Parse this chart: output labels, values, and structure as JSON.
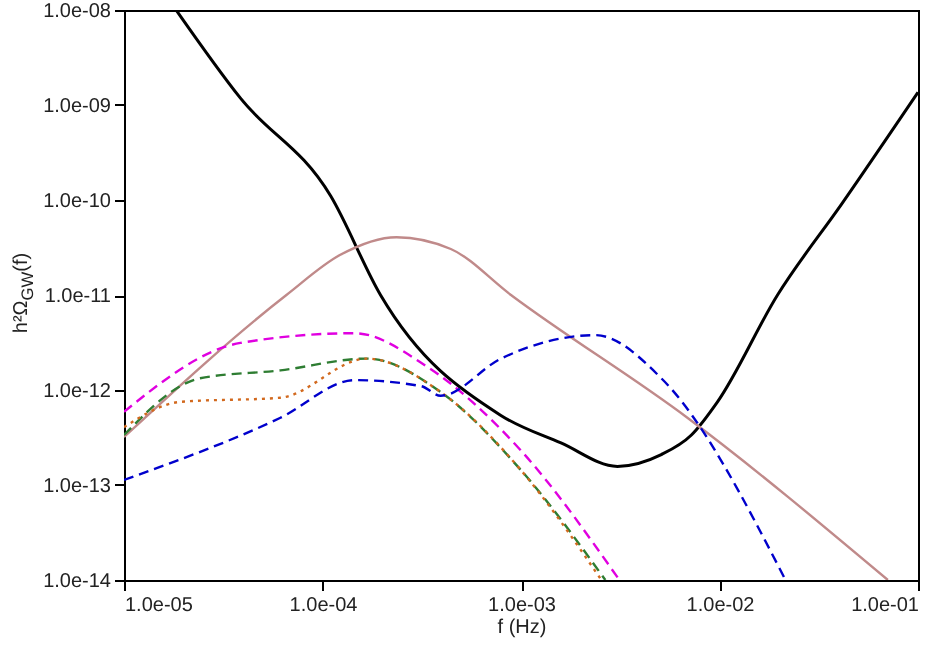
{
  "chart_data": {
    "type": "line",
    "xlabel": "f (Hz)",
    "ylabel": "h²Ω$_{GW}$(f)",
    "log": "xy",
    "xlim": [
      1e-05,
      0.1
    ],
    "ylim": [
      1e-14,
      1e-08
    ],
    "xticks": [
      {
        "value": 1e-05,
        "label": "1.0e-05"
      },
      {
        "value": 0.0001,
        "label": "1.0e-04"
      },
      {
        "value": 0.001,
        "label": "1.0e-03"
      },
      {
        "value": 0.01,
        "label": "1.0e-02"
      },
      {
        "value": 0.1,
        "label": "1.0e-01"
      }
    ],
    "yticks": [
      {
        "value": 1e-14,
        "label": "1.0e-14"
      },
      {
        "value": 1e-13,
        "label": "1.0e-13"
      },
      {
        "value": 1e-12,
        "label": "1.0e-12"
      },
      {
        "value": 1e-11,
        "label": "1.0e-11"
      },
      {
        "value": 1e-10,
        "label": "1.0e-10"
      },
      {
        "value": 1e-09,
        "label": "1.0e-09"
      },
      {
        "value": 1e-08,
        "label": "1.0e-08"
      }
    ],
    "series": [
      {
        "color": "#000000",
        "line_style": "solid",
        "x": [
          1.83e-05,
          3.86e-05,
          0.00011,
          0.000196,
          0.000792,
          0.00159,
          0.00306,
          0.00509,
          0.00722,
          0.00977,
          0.0196,
          0.0413,
          0.1
        ],
        "values": [
          1e-08,
          1.18e-09,
          1.1e-10,
          1e-11,
          5.4e-13,
          2.77e-13,
          1.57e-13,
          2.09e-13,
          3.36e-13,
          7.5e-13,
          1e-11,
          9.1e-11,
          1.36e-09
        ]
      },
      {
        "color": "#c08a8a",
        "line_style": "solid",
        "x": [
          1e-05,
          6.58e-05,
          0.000123,
          0.000236,
          0.000443,
          0.00089,
          0.00689,
          0.0705
        ],
        "values": [
          3.2e-13,
          1e-11,
          2.65e-11,
          4.06e-11,
          3.05e-11,
          1e-11,
          5.1e-13,
          1e-14
        ]
      },
      {
        "color": "#e000e0",
        "line_style": "dashed",
        "x": [
          1e-05,
          3.86e-05,
          0.000145,
          0.000335,
          0.001,
          0.00313
        ],
        "values": [
          5.9e-13,
          3.13e-12,
          3.96e-12,
          1.77e-12,
          2.3e-13,
          1e-14
        ]
      },
      {
        "color": "#2e7d32",
        "line_style": "dashed",
        "x": [
          1e-05,
          2.42e-05,
          6.14e-05,
          0.000167,
          0.000394,
          0.001,
          0.00266
        ],
        "values": [
          3.36e-13,
          1.33e-12,
          1.61e-12,
          2.14e-12,
          9.5e-13,
          1.43e-13,
          1e-14
        ]
      },
      {
        "color": "#d2691e",
        "line_style": "dotted",
        "x": [
          1e-05,
          1.92e-05,
          6.14e-05,
          0.000167,
          0.000394,
          0.001,
          0.00254
        ],
        "values": [
          4.06e-13,
          7.5e-13,
          8.3e-13,
          2.14e-12,
          9.5e-13,
          1.43e-13,
          1e-14
        ]
      },
      {
        "color": "#0000cc",
        "line_style": "dashed",
        "x": [
          1e-05,
          6.14e-05,
          0.000145,
          0.000313,
          0.000394,
          0.000792,
          0.00237,
          0.00509,
          0.0215
        ],
        "values": [
          1.13e-13,
          5.1e-13,
          1.27e-12,
          1.1e-12,
          8.7e-13,
          2.14e-12,
          3.78e-12,
          1.33e-12,
          1e-14
        ]
      }
    ]
  }
}
